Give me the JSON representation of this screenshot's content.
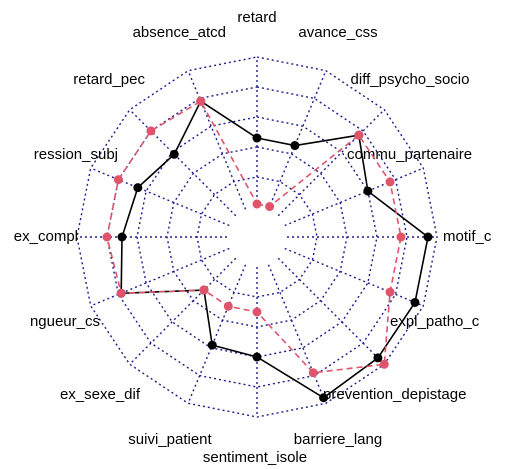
{
  "chart_data": {
    "type": "radar",
    "categories": [
      "retard",
      "avance_css",
      "diff_psycho_socio",
      "commu_partenaire",
      "motif_c",
      "expl_patho_c",
      "prevention_depistage",
      "barriere_lang",
      "sentiment_isole",
      "suivi_patient",
      "ex_sexe_dif",
      "ngueur_cs",
      "ex_compl",
      "ression_subj",
      "retard_pec",
      "absence_atcd"
    ],
    "ylim": [
      0,
      5
    ],
    "yticks": [
      1,
      2,
      3,
      4,
      5
    ],
    "grid": true,
    "series": [
      {
        "color": "#000000",
        "dash": false,
        "values": [
          2.3,
          2.3,
          3.8,
          3.0,
          4.7,
          4.7,
          4.7,
          4.8,
          3.0,
          2.9,
          1.5,
          3.9,
          3.5,
          3.3,
          2.9,
          3.9
        ]
      },
      {
        "color": "#df536b",
        "dash": true,
        "values": [
          0.1,
          0.1,
          3.8,
          3.8,
          3.8,
          3.8,
          5.0,
          3.9,
          1.5,
          1.5,
          1.5,
          3.9,
          4.0,
          4.0,
          4.0,
          3.9
        ]
      }
    ]
  }
}
